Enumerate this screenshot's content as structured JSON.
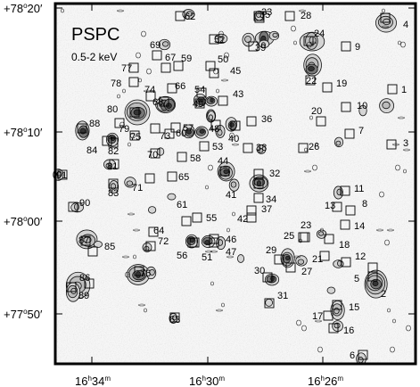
{
  "panel": {
    "title": "PSPC",
    "band": "0.5-2 keV"
  },
  "axes": {
    "dec_ticks": [
      {
        "sign": "+",
        "deg": "78",
        "min": "20′"
      },
      {
        "sign": "+",
        "deg": "78",
        "min": "10′"
      },
      {
        "sign": "+",
        "deg": "78",
        "min": "00′"
      },
      {
        "sign": "+",
        "deg": "77",
        "min": "50′"
      }
    ],
    "ra_ticks": [
      {
        "h": "16",
        "m": "34"
      },
      {
        "h": "16",
        "m": "30"
      },
      {
        "h": "16",
        "m": "26"
      }
    ]
  },
  "sources": [
    "1",
    "2",
    "3",
    "4",
    "5",
    "6",
    "7",
    "8",
    "9",
    "10",
    "11",
    "12",
    "13",
    "14",
    "15",
    "16",
    "17",
    "18",
    "19",
    "20",
    "21",
    "22",
    "23",
    "24",
    "25",
    "26",
    "27",
    "28",
    "29",
    "30",
    "31",
    "32",
    "33",
    "34",
    "35",
    "36",
    "37",
    "38",
    "39",
    "40",
    "41",
    "42",
    "43",
    "44",
    "45",
    "46",
    "47",
    "48",
    "49",
    "50",
    "51",
    "52",
    "53",
    "54",
    "55",
    "56",
    "57",
    "58",
    "59",
    "60",
    "61",
    "62",
    "63",
    "64",
    "65",
    "66",
    "67",
    "68",
    "69",
    "70",
    "71",
    "72",
    "73",
    "74",
    "75",
    "76",
    "77",
    "78",
    "79",
    "80",
    "81",
    "82",
    "83",
    "84",
    "85",
    "86",
    "87",
    "88",
    "89",
    "90",
    "91"
  ]
}
